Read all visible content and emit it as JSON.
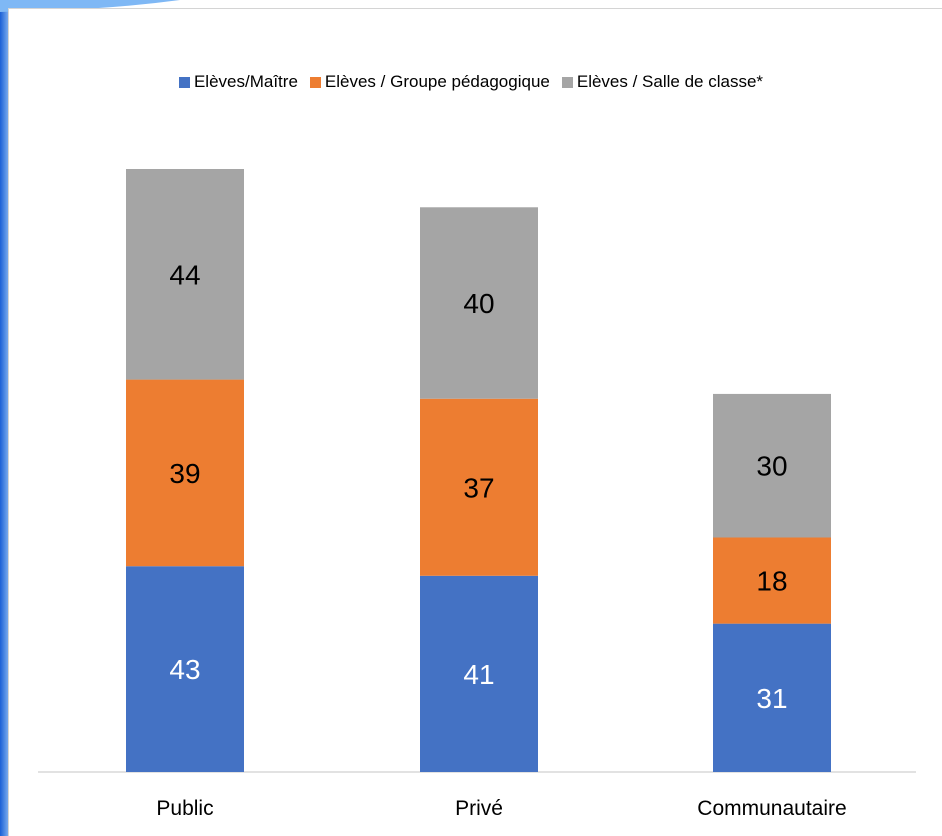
{
  "chart_data": {
    "type": "bar",
    "stacked": true,
    "categories": [
      "Public",
      "Privé",
      "Communautaire"
    ],
    "series": [
      {
        "name": "Elèves/Maître",
        "values": [
          43,
          41,
          31
        ],
        "color": "#4472C4"
      },
      {
        "name": "Elèves / Groupe pédagogique",
        "values": [
          39,
          37,
          18
        ],
        "color": "#ED7D31"
      },
      {
        "name": "Elèves / Salle de classe*",
        "values": [
          44,
          40,
          30
        ],
        "color": "#A5A5A5"
      }
    ],
    "title": "",
    "xlabel": "",
    "ylabel": "",
    "ylim": [
      0,
      130
    ],
    "grid": false,
    "legend_position": "top",
    "data_label_color": {
      "Elèves/Maître": "#ffffff",
      "Elèves / Groupe pédagogique": "#000000",
      "Elèves / Salle de classe*": "#000000"
    }
  }
}
